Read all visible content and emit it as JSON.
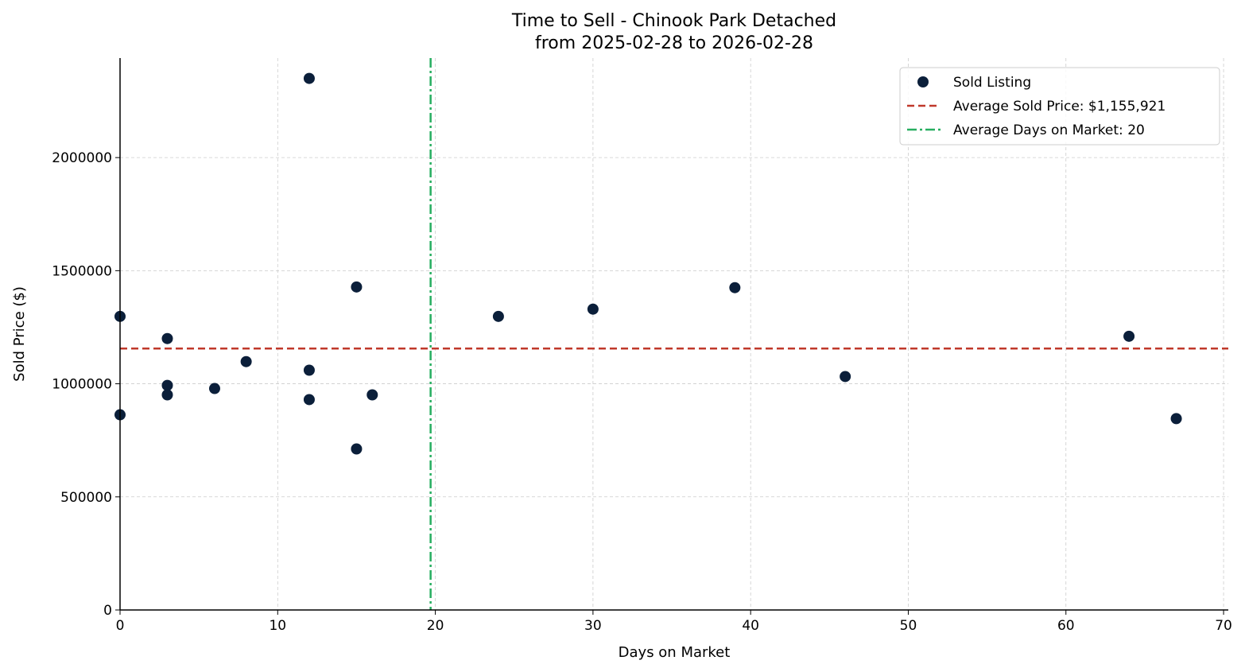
{
  "chart_data": {
    "type": "scatter",
    "title": "Time to Sell - Chinook Park Detached",
    "subtitle": "from 2025-02-28 to 2026-02-28",
    "xlabel": "Days on Market",
    "ylabel": "Sold Price ($)",
    "xlim": [
      0,
      70.3
    ],
    "ylim": [
      0,
      2440000
    ],
    "xticks": [
      0,
      10,
      20,
      30,
      40,
      50,
      60,
      70
    ],
    "yticks": [
      0,
      500000,
      1000000,
      1500000,
      2000000
    ],
    "grid": true,
    "legend_position": "top-right",
    "series": [
      {
        "name": "Sold Listing",
        "color": "#0b1f3a",
        "points": [
          [
            12,
            2350000
          ],
          [
            15,
            1428000
          ],
          [
            0,
            1298000
          ],
          [
            3,
            1200000
          ],
          [
            8,
            1098000
          ],
          [
            12,
            1060000
          ],
          [
            3,
            993000
          ],
          [
            3,
            951000
          ],
          [
            6,
            979000
          ],
          [
            12,
            930000
          ],
          [
            16,
            951000
          ],
          [
            0,
            863000
          ],
          [
            15,
            712000
          ],
          [
            24,
            1298000
          ],
          [
            30,
            1330000
          ],
          [
            39,
            1425000
          ],
          [
            46,
            1032000
          ],
          [
            64,
            1210000
          ],
          [
            67,
            846000
          ]
        ]
      }
    ],
    "reference_lines": [
      {
        "name": "Average Sold Price: $1,155,921",
        "axis": "y",
        "value": 1155921,
        "color": "#c0392b",
        "style": "dashed"
      },
      {
        "name": "Average Days on Market: 20",
        "axis": "x",
        "value": 19.7,
        "color": "#27ae60",
        "style": "dashdot"
      }
    ]
  }
}
